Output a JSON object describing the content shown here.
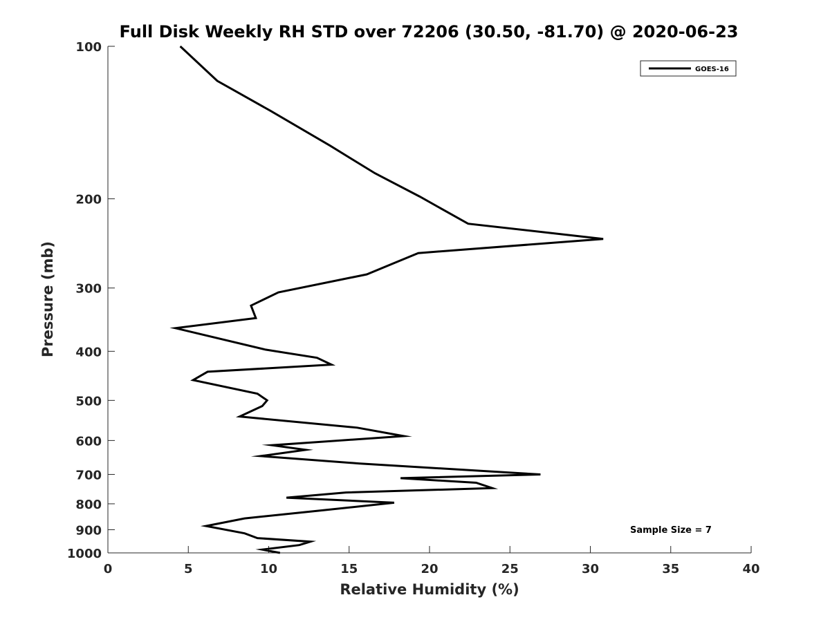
{
  "chart_data": {
    "type": "line",
    "title": "Full Disk Weekly RH STD over 72206 (30.50, -81.70) @ 2020-06-23",
    "xlabel": "Relative Humidity (%)",
    "ylabel": "Pressure (mb)",
    "xlim": [
      0,
      40
    ],
    "ylim": [
      100,
      1000
    ],
    "yscale": "log",
    "y_reversed": true,
    "xticks": [
      "0",
      "5",
      "10",
      "15",
      "20",
      "25",
      "30",
      "35",
      "40"
    ],
    "yticks": [
      "100",
      "200",
      "300",
      "400",
      "500",
      "600",
      "700",
      "800",
      "900",
      "1000"
    ],
    "grid": false,
    "legend_position": "top-right",
    "series": [
      {
        "name": "GOES-16",
        "color": "#000000",
        "x": [
          4.5,
          6.8,
          10.1,
          13.8,
          16.6,
          19.4,
          22.4,
          30.8,
          19.3,
          16.1,
          10.6,
          8.9,
          9.2,
          4.2,
          9.8,
          13.0,
          13.9,
          6.2,
          5.3,
          9.3,
          9.9,
          9.6,
          8.2,
          15.5,
          18.4,
          10.2,
          12.3,
          9.5,
          15.6,
          26.9,
          18.2,
          22.9,
          23.9,
          14.8,
          11.1,
          17.8,
          13.2,
          8.5,
          6.1,
          8.5,
          9.3,
          12.6,
          11.9,
          9.6,
          10.7
        ],
        "y": [
          100,
          117,
          134,
          157,
          178,
          198,
          224,
          240,
          256,
          282,
          306,
          325,
          344,
          360,
          397,
          412,
          425,
          439,
          456,
          485,
          500,
          513,
          538,
          566,
          588,
          613,
          626,
          644,
          666,
          700,
          712,
          727,
          745,
          760,
          778,
          796,
          825,
          855,
          885,
          915,
          935,
          950,
          965,
          985,
          1000
        ]
      }
    ],
    "legend": [
      "GOES-16"
    ],
    "annotations": [
      "Sample Size = 7"
    ]
  }
}
